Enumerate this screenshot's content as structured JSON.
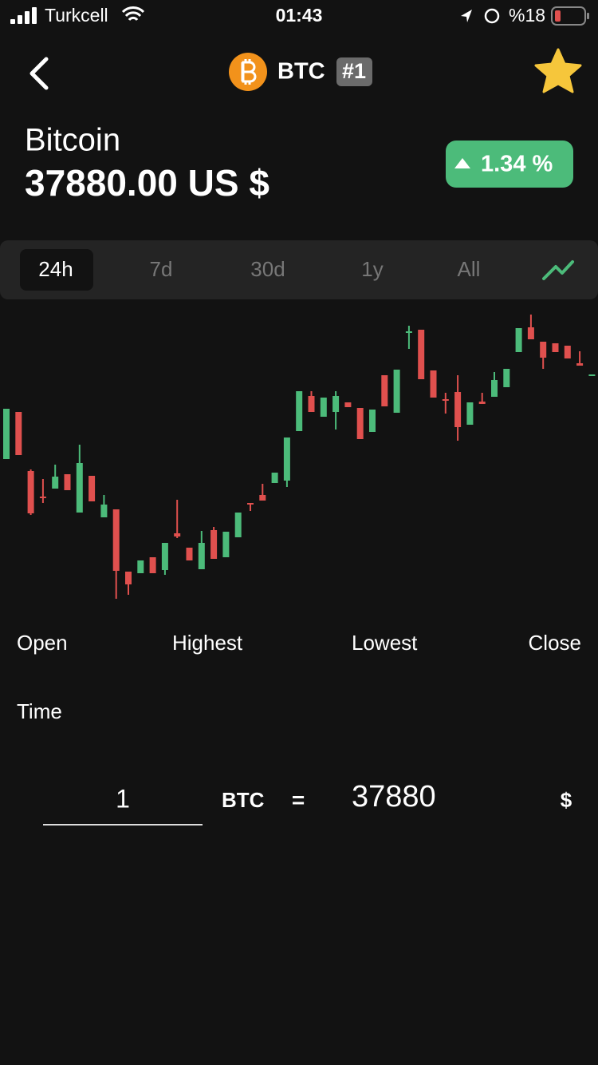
{
  "status_bar": {
    "carrier": "Turkcell",
    "time": "01:43",
    "battery": "%18"
  },
  "header": {
    "symbol": "BTC",
    "rank": "#1"
  },
  "coin": {
    "name": "Bitcoin",
    "price": "37880.00 US $",
    "change": "1.34 %"
  },
  "tabs": [
    "24h",
    "7d",
    "30d",
    "1y",
    "All"
  ],
  "chart_data": {
    "type": "candlestick",
    "ylim": [
      0,
      360
    ],
    "up_color": "#4cbb7a",
    "down_color": "#e0504e",
    "open": [
      175,
      234,
      160,
      128,
      138,
      156,
      108,
      154,
      102,
      112,
      34,
      32,
      52,
      36,
      82,
      64,
      37,
      86,
      52,
      77,
      120,
      130,
      145,
      148,
      210,
      254,
      228,
      234,
      246,
      239,
      209,
      280,
      233,
      333,
      337,
      286,
      250,
      259,
      218,
      247,
      253,
      265,
      309,
      340,
      322,
      320,
      317,
      295,
      280
    ],
    "close": [
      238,
      180,
      107,
      126,
      153,
      136,
      170,
      122,
      118,
      35,
      18,
      48,
      32,
      70,
      78,
      48,
      70,
      50,
      84,
      108,
      118,
      123,
      158,
      202,
      260,
      234,
      252,
      254,
      240,
      200,
      237,
      241,
      287,
      335,
      275,
      252,
      248,
      215,
      246,
      244,
      274,
      288,
      339,
      325,
      302,
      309,
      301,
      292,
      281
    ],
    "high": [
      238,
      234,
      162,
      150,
      168,
      156,
      193,
      154,
      130,
      112,
      34,
      48,
      52,
      70,
      124,
      64,
      85,
      90,
      84,
      108,
      120,
      144,
      158,
      202,
      260,
      260,
      252,
      260,
      246,
      239,
      237,
      280,
      287,
      342,
      337,
      286,
      258,
      280,
      246,
      258,
      284,
      288,
      339,
      356,
      322,
      320,
      317,
      310,
      281
    ],
    "low": [
      175,
      180,
      105,
      120,
      138,
      136,
      108,
      122,
      102,
      0,
      5,
      32,
      32,
      30,
      76,
      48,
      37,
      50,
      52,
      77,
      110,
      123,
      145,
      140,
      210,
      234,
      228,
      212,
      240,
      200,
      209,
      241,
      233,
      313,
      275,
      252,
      232,
      198,
      218,
      244,
      253,
      265,
      309,
      325,
      288,
      309,
      301,
      292,
      280
    ]
  },
  "labels": {
    "open": "Open",
    "highest": "Highest",
    "lowest": "Lowest",
    "close": "Close",
    "time": "Time"
  },
  "converter": {
    "amount": "1",
    "unit": "BTC",
    "equals": "=",
    "result": "37880",
    "currency": "$"
  }
}
